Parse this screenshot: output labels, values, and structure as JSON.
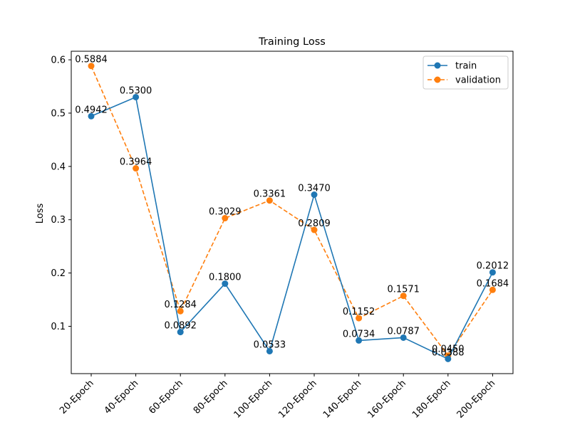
{
  "chart_data": {
    "type": "line",
    "title": "Training Loss",
    "xlabel": "",
    "ylabel": "Loss",
    "categories": [
      "20-Epoch",
      "40-Epoch",
      "60-Epoch",
      "80-Epoch",
      "100-Epoch",
      "120-Epoch",
      "140-Epoch",
      "160-Epoch",
      "180-Epoch",
      "200-Epoch"
    ],
    "series": [
      {
        "name": "train",
        "color": "#1f77b4",
        "line_style": "solid",
        "marker": "circle",
        "values": [
          0.4942,
          0.53,
          0.0892,
          0.18,
          0.0533,
          0.347,
          0.0734,
          0.0787,
          0.0388,
          0.2012
        ],
        "labels": [
          "0.4942",
          "0.5300",
          "0.0892",
          "0.1800",
          "0.0533",
          "0.3470",
          "0.0734",
          "0.0787",
          "0.0388",
          "0.2012"
        ]
      },
      {
        "name": "validation",
        "color": "#ff7f0e",
        "line_style": "dashed",
        "marker": "circle",
        "values": [
          0.5884,
          0.3964,
          0.1284,
          0.3029,
          0.3361,
          0.2809,
          0.1152,
          0.1571,
          0.045,
          0.1684
        ],
        "labels": [
          "0.5884",
          "0.3964",
          "0.1284",
          "0.3029",
          "0.3361",
          "0.2809",
          "0.1152",
          "0.1571",
          "0.0450",
          "0.1684"
        ]
      }
    ],
    "yticks": [
      0.1,
      0.2,
      0.3,
      0.4,
      0.5,
      0.6
    ],
    "ytick_labels": [
      "0.1",
      "0.2",
      "0.3",
      "0.4",
      "0.5",
      "0.6"
    ],
    "ylim": [
      0.0112,
      0.6161
    ],
    "grid": false,
    "legend_position": "upper-right"
  }
}
